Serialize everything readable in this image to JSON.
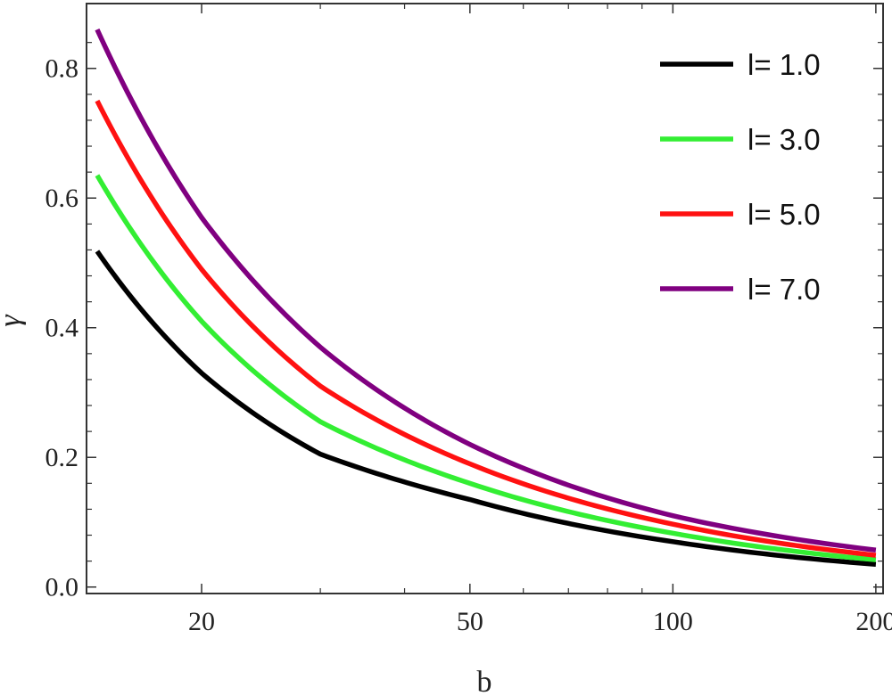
{
  "chart_data": {
    "type": "line",
    "title": "",
    "xlabel": "b",
    "ylabel": "γ",
    "xscale": "log",
    "xlim": [
      13.5,
      205
    ],
    "ylim": [
      -0.01,
      0.9
    ],
    "xticks": [
      20,
      50,
      100,
      200
    ],
    "xtick_labels": [
      "20",
      "50",
      "100",
      "200"
    ],
    "yticks": [
      0.0,
      0.2,
      0.4,
      0.6,
      0.8
    ],
    "ytick_labels": [
      "0.0",
      "0.2",
      "0.4",
      "0.6",
      "0.8"
    ],
    "grid": false,
    "legend": "top-right",
    "x": [
      14,
      20,
      30,
      50,
      100,
      200
    ],
    "series": [
      {
        "name": "l= 1.0",
        "color": "#000000",
        "values": [
          0.518,
          0.33,
          0.205,
          0.135,
          0.07,
          0.035
        ]
      },
      {
        "name": "l= 3.0",
        "color": "#33ee33",
        "values": [
          0.635,
          0.41,
          0.255,
          0.16,
          0.083,
          0.042
        ]
      },
      {
        "name": "l= 5.0",
        "color": "#ff1111",
        "values": [
          0.75,
          0.49,
          0.31,
          0.19,
          0.097,
          0.049
        ]
      },
      {
        "name": "l= 7.0",
        "color": "#800080",
        "values": [
          0.86,
          0.57,
          0.37,
          0.22,
          0.11,
          0.057
        ]
      }
    ]
  }
}
